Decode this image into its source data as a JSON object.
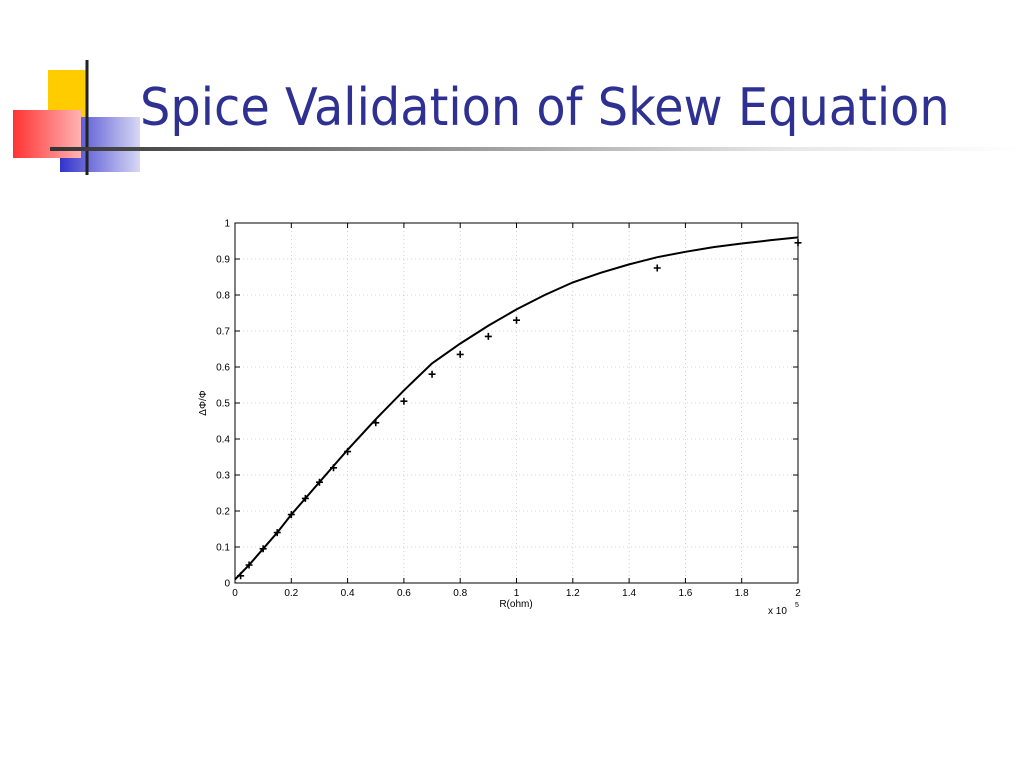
{
  "slide": {
    "title": "Spice Validation of Skew Equation"
  },
  "colors": {
    "title": "#2e3192",
    "logo_yellow": "#ffcc00",
    "logo_red": "#ff3333",
    "logo_blue": "#3333cc"
  },
  "chart_data": {
    "type": "line",
    "xlabel": "R(ohm)",
    "ylabel": "ΔΦ/Φ",
    "x_multiplier_label": "x 10",
    "x_multiplier_exp": "5",
    "xlim": [
      0,
      2
    ],
    "ylim": [
      0,
      1
    ],
    "x_ticks": [
      "0",
      "0.2",
      "0.4",
      "0.6",
      "0.8",
      "1",
      "1.2",
      "1.4",
      "1.6",
      "1.8",
      "2"
    ],
    "y_ticks": [
      "0",
      "0.1",
      "0.2",
      "0.3",
      "0.4",
      "0.5",
      "0.6",
      "0.7",
      "0.8",
      "0.9",
      "1"
    ],
    "grid": true,
    "series": [
      {
        "style": "solid-line",
        "x": [
          0,
          0.05,
          0.1,
          0.15,
          0.2,
          0.25,
          0.3,
          0.35,
          0.4,
          0.5,
          0.6,
          0.7,
          0.8,
          0.9,
          1.0,
          1.1,
          1.2,
          1.3,
          1.4,
          1.5,
          1.6,
          1.7,
          1.8,
          1.9,
          2.0
        ],
        "y": [
          0.01,
          0.05,
          0.095,
          0.14,
          0.19,
          0.235,
          0.28,
          0.325,
          0.37,
          0.455,
          0.535,
          0.61,
          0.665,
          0.715,
          0.76,
          0.8,
          0.835,
          0.862,
          0.885,
          0.905,
          0.92,
          0.933,
          0.943,
          0.952,
          0.96
        ]
      },
      {
        "style": "plus-markers",
        "x": [
          0.02,
          0.05,
          0.1,
          0.15,
          0.2,
          0.25,
          0.3,
          0.35,
          0.4,
          0.5,
          0.6,
          0.7,
          0.8,
          0.9,
          1.0,
          1.5,
          2.0
        ],
        "y": [
          0.02,
          0.05,
          0.095,
          0.14,
          0.19,
          0.235,
          0.28,
          0.32,
          0.365,
          0.445,
          0.505,
          0.58,
          0.635,
          0.685,
          0.73,
          0.875,
          0.945
        ]
      }
    ]
  }
}
